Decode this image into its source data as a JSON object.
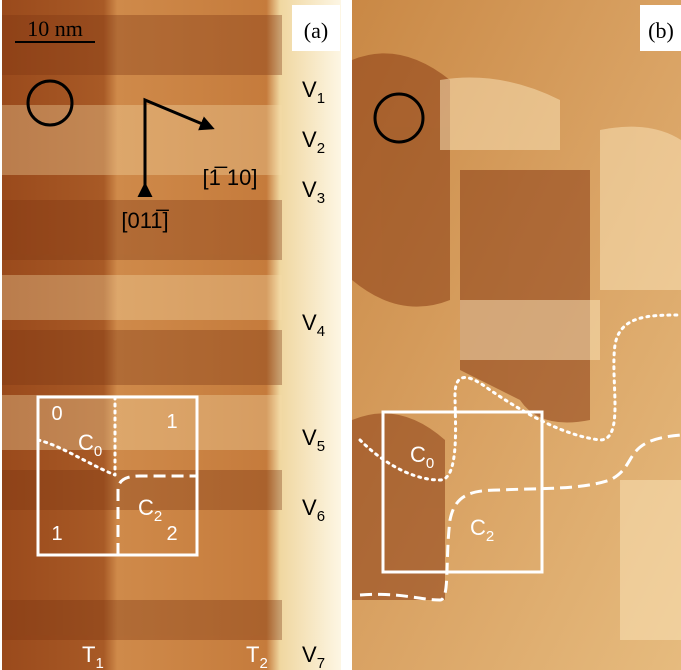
{
  "panel_a": {
    "label": "(a)",
    "scale_bar": "10 nm",
    "directions": [
      "[1̅ 10]",
      "[011̅]"
    ],
    "rows": [
      {
        "base": "V",
        "sub": "1"
      },
      {
        "base": "V",
        "sub": "2"
      },
      {
        "base": "V",
        "sub": "3"
      },
      {
        "base": "V",
        "sub": "4"
      },
      {
        "base": "V",
        "sub": "5"
      },
      {
        "base": "V",
        "sub": "6"
      },
      {
        "base": "V",
        "sub": "7"
      }
    ],
    "terraces": [
      {
        "base": "T",
        "sub": "1"
      },
      {
        "base": "T",
        "sub": "2"
      }
    ],
    "box": {
      "cells": [
        "0",
        "1",
        "1",
        "2"
      ],
      "regions": [
        {
          "base": "C",
          "sub": "0"
        },
        {
          "base": "C",
          "sub": "2"
        }
      ]
    }
  },
  "panel_b": {
    "label": "(b)",
    "regions": [
      {
        "base": "C",
        "sub": "0"
      },
      {
        "base": "C",
        "sub": "2"
      }
    ]
  }
}
